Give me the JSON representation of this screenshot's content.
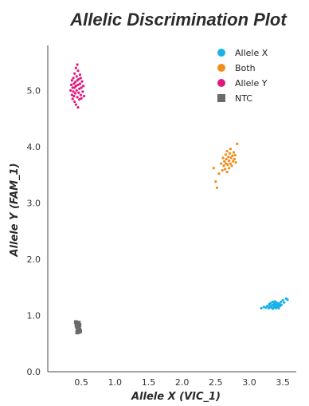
{
  "chart_data": {
    "type": "scatter",
    "title": "Allelic Discrimination Plot",
    "xlabel": "Allele X (VIC_1)",
    "ylabel": "Allele Y (FAM_1)",
    "xlim": [
      0,
      3.7
    ],
    "ylim": [
      0,
      5.8
    ],
    "x_ticks": [
      "0.5",
      "1.0",
      "1.5",
      "2.0",
      "2.5",
      "3.0",
      "3.5"
    ],
    "y_ticks": [
      "0.0",
      "1.0",
      "2.0",
      "3.0",
      "4.0",
      "5.0"
    ],
    "grid": false,
    "legend_position": "top-right",
    "series": [
      {
        "name": "Allele X",
        "color": "#1ab2e8",
        "marker": "circle",
        "points": [
          [
            3.18,
            1.13
          ],
          [
            3.22,
            1.15
          ],
          [
            3.25,
            1.14
          ],
          [
            3.27,
            1.17
          ],
          [
            3.29,
            1.13
          ],
          [
            3.3,
            1.2
          ],
          [
            3.31,
            1.16
          ],
          [
            3.32,
            1.22
          ],
          [
            3.33,
            1.14
          ],
          [
            3.34,
            1.18
          ],
          [
            3.35,
            1.24
          ],
          [
            3.35,
            1.12
          ],
          [
            3.36,
            1.19
          ],
          [
            3.37,
            1.15
          ],
          [
            3.37,
            1.21
          ],
          [
            3.38,
            1.17
          ],
          [
            3.38,
            1.25
          ],
          [
            3.39,
            1.13
          ],
          [
            3.39,
            1.2
          ],
          [
            3.4,
            1.16
          ],
          [
            3.4,
            1.23
          ],
          [
            3.41,
            1.14
          ],
          [
            3.41,
            1.19
          ],
          [
            3.42,
            1.17
          ],
          [
            3.42,
            1.22
          ],
          [
            3.43,
            1.15
          ],
          [
            3.43,
            1.2
          ],
          [
            3.44,
            1.18
          ],
          [
            3.44,
            1.13
          ],
          [
            3.45,
            1.21
          ],
          [
            3.46,
            1.17
          ],
          [
            3.47,
            1.24
          ],
          [
            3.48,
            1.19
          ],
          [
            3.5,
            1.27
          ],
          [
            3.52,
            1.23
          ],
          [
            3.55,
            1.3
          ],
          [
            3.57,
            1.28
          ]
        ]
      },
      {
        "name": "Both",
        "color": "#f28c1a",
        "marker": "circle",
        "points": [
          [
            2.47,
            3.62
          ],
          [
            2.5,
            3.38
          ],
          [
            2.52,
            3.27
          ],
          [
            2.55,
            3.52
          ],
          [
            2.58,
            3.7
          ],
          [
            2.6,
            3.58
          ],
          [
            2.61,
            3.8
          ],
          [
            2.62,
            3.66
          ],
          [
            2.63,
            3.74
          ],
          [
            2.64,
            3.6
          ],
          [
            2.65,
            3.86
          ],
          [
            2.65,
            3.7
          ],
          [
            2.66,
            3.78
          ],
          [
            2.67,
            3.55
          ],
          [
            2.67,
            3.92
          ],
          [
            2.68,
            3.68
          ],
          [
            2.69,
            3.82
          ],
          [
            2.7,
            3.75
          ],
          [
            2.7,
            3.62
          ],
          [
            2.71,
            3.88
          ],
          [
            2.72,
            3.7
          ],
          [
            2.72,
            3.96
          ],
          [
            2.73,
            3.8
          ],
          [
            2.74,
            3.66
          ],
          [
            2.75,
            3.84
          ],
          [
            2.76,
            3.74
          ],
          [
            2.77,
            3.9
          ],
          [
            2.78,
            3.78
          ],
          [
            2.79,
            3.85
          ],
          [
            2.8,
            3.72
          ],
          [
            2.82,
            4.05
          ]
        ]
      },
      {
        "name": "Allele Y",
        "color": "#e0197d",
        "marker": "circle",
        "points": [
          [
            0.34,
            5.0
          ],
          [
            0.35,
            5.1
          ],
          [
            0.36,
            4.92
          ],
          [
            0.36,
            5.18
          ],
          [
            0.37,
            5.05
          ],
          [
            0.37,
            4.85
          ],
          [
            0.38,
            5.22
          ],
          [
            0.38,
            4.98
          ],
          [
            0.39,
            5.12
          ],
          [
            0.39,
            4.9
          ],
          [
            0.4,
            5.3
          ],
          [
            0.4,
            5.05
          ],
          [
            0.4,
            4.8
          ],
          [
            0.41,
            5.15
          ],
          [
            0.41,
            4.95
          ],
          [
            0.42,
            5.4
          ],
          [
            0.42,
            5.08
          ],
          [
            0.42,
            4.75
          ],
          [
            0.43,
            5.25
          ],
          [
            0.43,
            5.0
          ],
          [
            0.44,
            4.88
          ],
          [
            0.44,
            5.46
          ],
          [
            0.44,
            5.18
          ],
          [
            0.45,
            4.7
          ],
          [
            0.45,
            5.1
          ],
          [
            0.45,
            5.35
          ],
          [
            0.46,
            4.96
          ],
          [
            0.46,
            5.2
          ],
          [
            0.47,
            5.03
          ],
          [
            0.47,
            4.84
          ],
          [
            0.48,
            5.28
          ],
          [
            0.48,
            5.12
          ],
          [
            0.49,
            4.92
          ],
          [
            0.49,
            5.22
          ],
          [
            0.5,
            5.05
          ],
          [
            0.5,
            4.86
          ],
          [
            0.51,
            5.16
          ],
          [
            0.52,
            4.98
          ],
          [
            0.53,
            5.08
          ],
          [
            0.54,
            4.9
          ]
        ]
      },
      {
        "name": "NTC",
        "color": "#6b6b6b",
        "marker": "square",
        "points": [
          [
            0.42,
            0.88
          ],
          [
            0.44,
            0.86
          ],
          [
            0.46,
            0.87
          ],
          [
            0.43,
            0.82
          ],
          [
            0.45,
            0.84
          ],
          [
            0.47,
            0.83
          ],
          [
            0.44,
            0.79
          ],
          [
            0.46,
            0.78
          ],
          [
            0.45,
            0.74
          ],
          [
            0.47,
            0.75
          ],
          [
            0.44,
            0.7
          ],
          [
            0.46,
            0.71
          ],
          [
            0.48,
            0.72
          ]
        ]
      }
    ]
  }
}
